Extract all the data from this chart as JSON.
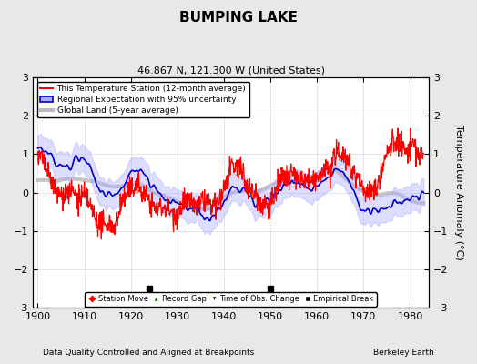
{
  "title": "BUMPING LAKE",
  "subtitle": "46.867 N, 121.300 W (United States)",
  "xlabel_bottom": "Data Quality Controlled and Aligned at Breakpoints",
  "xlabel_right": "Berkeley Earth",
  "ylabel": "Temperature Anomaly (°C)",
  "xlim": [
    1899,
    1984
  ],
  "ylim": [
    -3,
    3
  ],
  "yticks": [
    -3,
    -2,
    -1,
    0,
    1,
    2,
    3
  ],
  "xticks": [
    1900,
    1910,
    1920,
    1930,
    1940,
    1950,
    1960,
    1970,
    1980
  ],
  "bg_color": "#e8e8e8",
  "plot_bg_color": "#ffffff",
  "grid_color": "#cccccc",
  "legend_labels": [
    "This Temperature Station (12-month average)",
    "Regional Expectation with 95% uncertainty",
    "Global Land (5-year average)"
  ],
  "legend_colors": [
    "#ff0000",
    "#0000cc",
    "#bbbbbb"
  ],
  "empirical_breaks": [
    1924,
    1950
  ],
  "station_moves": [],
  "record_gaps": [],
  "tobs_changes": [],
  "seed": 42
}
